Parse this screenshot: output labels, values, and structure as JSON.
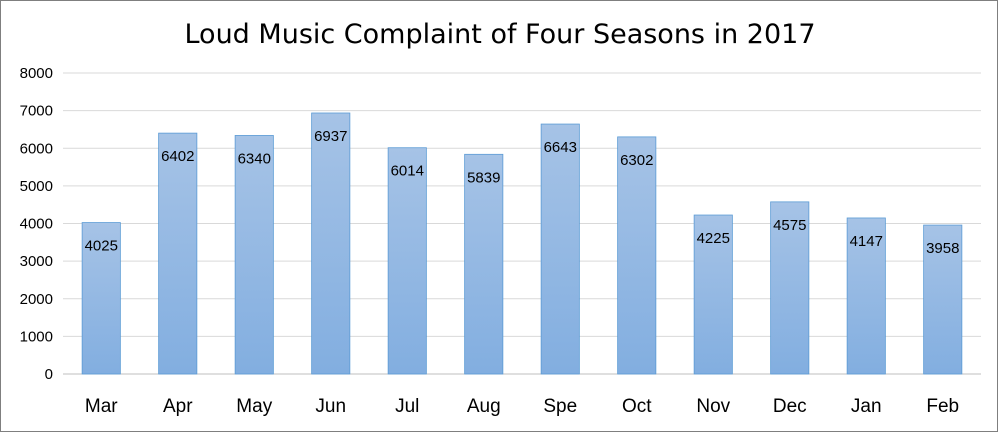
{
  "chart_data": {
    "type": "bar",
    "title": "Loud Music Complaint of Four Seasons in 2017",
    "xlabel": "",
    "ylabel": "",
    "categories": [
      "Mar",
      "Apr",
      "May",
      "Jun",
      "Jul",
      "Aug",
      "Spe",
      "Oct",
      "Nov",
      "Dec",
      "Jan",
      "Feb"
    ],
    "values": [
      4025,
      6402,
      6340,
      6937,
      6014,
      5839,
      6643,
      6302,
      4225,
      4575,
      4147,
      3958
    ],
    "ylim": [
      0,
      8000
    ],
    "yticks": [
      0,
      1000,
      2000,
      3000,
      4000,
      5000,
      6000,
      7000,
      8000
    ],
    "grid": true,
    "legend": "none",
    "data_labels": true,
    "bar_color_top": "#a6c3e6",
    "bar_color_bottom": "#82aee0",
    "bar_border": "#5b9bd5"
  }
}
